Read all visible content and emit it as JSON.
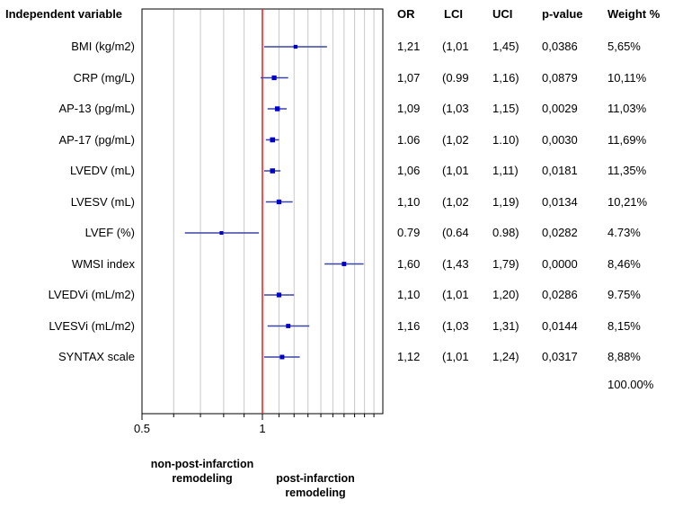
{
  "headers": {
    "variable": "Independent variable",
    "or": "OR",
    "lci": "LCI",
    "uci": "UCI",
    "pvalue": "p-value",
    "weight": "Weight %"
  },
  "rows": [
    {
      "label": "BMI (kg/m2)",
      "or": "1,21",
      "lci": "(1,01",
      "uci": "1,45)",
      "p": "0,0386",
      "w": "5,65%"
    },
    {
      "label": "CRP (mg/L)",
      "or": "1,07",
      "lci": "(0.99",
      "uci": "1,16)",
      "p": "0,0879",
      "w": "10,11%"
    },
    {
      "label": "AP-13 (pg/mL)",
      "or": "1,09",
      "lci": "(1,03",
      "uci": "1,15)",
      "p": "0,0029",
      "w": "11,03%"
    },
    {
      "label": "AP-17 (pg/mL)",
      "or": "1.06",
      "lci": "(1,02",
      "uci": "1.10)",
      "p": "0,0030",
      "w": "11,69%"
    },
    {
      "label": "LVEDV (mL)",
      "or": "1,06",
      "lci": "(1,01",
      "uci": "1,11)",
      "p": "0,0181",
      "w": "11,35%"
    },
    {
      "label": "LVESV (mL)",
      "or": "1,10",
      "lci": "(1,02",
      "uci": "1,19)",
      "p": "0,0134",
      "w": "10,21%"
    },
    {
      "label": "LVEF (%)",
      "or": "0.79",
      "lci": "(0.64",
      "uci": "0.98)",
      "p": "0,0282",
      "w": "4.73%"
    },
    {
      "label": "WMSI index",
      "or": "1,60",
      "lci": "(1,43",
      "uci": "1,79)",
      "p": "0,0000",
      "w": "8,46%"
    },
    {
      "label": "LVEDVi (mL/m2)",
      "or": "1,10",
      "lci": "(1,01",
      "uci": "1,20)",
      "p": "0,0286",
      "w": "9.75%"
    },
    {
      "label": "LVESVi (mL/m2)",
      "or": "1,16",
      "lci": "(1,03",
      "uci": "1,31)",
      "p": "0,0144",
      "w": "8,15%"
    },
    {
      "label": "SYNTAX scale",
      "or": "1,12",
      "lci": "(1,01",
      "uci": "1,24)",
      "p": "0,0317",
      "w": "8,88%"
    }
  ],
  "total_weight": "100.00%",
  "captions": {
    "left": [
      "non-post-infarction",
      "remodeling"
    ],
    "right": [
      "post-infarction",
      "remodeling"
    ]
  },
  "colors": {
    "point": "#0000cc",
    "ci_line": "#3b45a6",
    "reference": "#ff2020",
    "grid": "#c8c8c8",
    "frame": "#000000"
  },
  "chart_data": {
    "type": "forest",
    "x_scale": "log",
    "xlim": [
      0.5,
      2.0
    ],
    "reference_value": 1,
    "x_ticks": [
      {
        "value": 0.5,
        "label": "0.5"
      },
      {
        "value": 1,
        "label": "1"
      }
    ],
    "categories": [
      "BMI (kg/m2)",
      "CRP (mg/L)",
      "AP-13 (pg/mL)",
      "AP-17 (pg/mL)",
      "LVEDV (mL)",
      "LVESV (mL)",
      "LVEF (%)",
      "WMSI index",
      "LVEDVi (mL/m2)",
      "LVESVi (mL/m2)",
      "SYNTAX scale"
    ],
    "or": [
      1.21,
      1.07,
      1.09,
      1.06,
      1.06,
      1.1,
      0.79,
      1.6,
      1.1,
      1.16,
      1.12
    ],
    "lci": [
      1.01,
      0.99,
      1.03,
      1.02,
      1.01,
      1.02,
      0.64,
      1.43,
      1.01,
      1.03,
      1.01
    ],
    "uci": [
      1.45,
      1.16,
      1.15,
      1.1,
      1.11,
      1.19,
      0.98,
      1.79,
      1.2,
      1.31,
      1.24
    ],
    "weights": [
      5.65,
      10.11,
      11.03,
      11.69,
      11.35,
      10.21,
      4.73,
      8.46,
      9.75,
      8.15,
      8.88
    ]
  }
}
